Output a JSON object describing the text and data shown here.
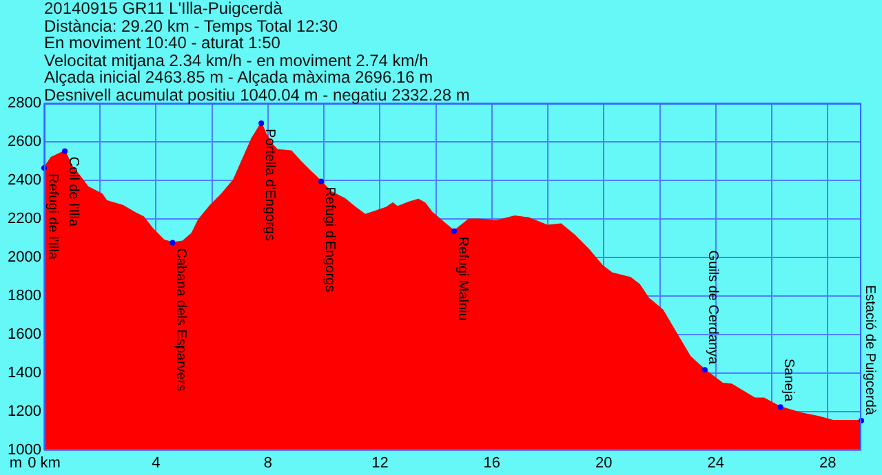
{
  "chart_data": {
    "type": "area",
    "title": "20140915 GR11 L'Illa-Puigcerdà",
    "subtitle": "Distància: 29.20 km - Temps Total 12:30\nEn moviment 10:40 - aturat 1:50\nVelocitat mitjana 2.34 km/h - en moviment 2.74 km/h\nAlçada inicial 2463.85 m - Alçada màxima 2696.16 m\nDesnivell acumulat positiu 1040.04 m - negatiu 2332.28 m",
    "ylabel": "m",
    "x": [
      0,
      0.25,
      0.74,
      0.99,
      1.32,
      1.57,
      2.06,
      2.23,
      2.8,
      3.22,
      3.55,
      3.88,
      4.29,
      4.59,
      4.95,
      5.28,
      5.53,
      5.94,
      6.35,
      6.77,
      7.1,
      7.43,
      7.76,
      7.92,
      8.17,
      8.33,
      8.83,
      9.16,
      9.49,
      9.9,
      10.23,
      10.73,
      11.14,
      11.47,
      11.72,
      12.21,
      12.46,
      12.62,
      13.04,
      13.37,
      13.61,
      13.86,
      14.35,
      14.65,
      15.18,
      15.51,
      16.16,
      16.82,
      17.32,
      17.98,
      18.47,
      18.97,
      19.46,
      19.95,
      20.28,
      20.94,
      21.27,
      21.6,
      22.1,
      22.59,
      23.08,
      23.61,
      24.24,
      24.57,
      25.39,
      25.72,
      26.31,
      27.04,
      27.7,
      28.19,
      29.2
    ],
    "series": [
      {
        "color": "#ff0000",
        "values": [
          2464,
          2518,
          2552,
          2475,
          2414,
          2366,
          2330,
          2294,
          2270,
          2234,
          2210,
          2149,
          2089,
          2077,
          2084,
          2125,
          2198,
          2270,
          2330,
          2402,
          2511,
          2619,
          2696,
          2643,
          2583,
          2559,
          2552,
          2499,
          2451,
          2395,
          2342,
          2306,
          2258,
          2222,
          2234,
          2258,
          2282,
          2263,
          2287,
          2301,
          2282,
          2234,
          2173,
          2137,
          2198,
          2198,
          2190,
          2214,
          2205,
          2166,
          2173,
          2113,
          2041,
          1957,
          1920,
          1896,
          1860,
          1788,
          1728,
          1607,
          1487,
          1417,
          1347,
          1342,
          1270,
          1270,
          1224,
          1193,
          1173,
          1154,
          1154
        ]
      }
    ],
    "xlim": [
      0,
      29.2
    ],
    "xticks": [
      {
        "value": 0,
        "label": "0 km"
      },
      {
        "value": 2,
        "label": null
      },
      4,
      {
        "value": 6,
        "label": null
      },
      8,
      {
        "value": 10,
        "label": null
      },
      12,
      {
        "value": 14,
        "label": null
      },
      16,
      {
        "value": 18,
        "label": null
      },
      20,
      {
        "value": 22,
        "label": null
      },
      24,
      {
        "value": 26,
        "label": null
      },
      28
    ],
    "ylim": [
      1000,
      2800
    ],
    "yticks": [
      1000,
      1200,
      1400,
      1600,
      1800,
      2000,
      2200,
      2400,
      2600,
      2800
    ],
    "grid": true,
    "legend": false,
    "marker": "none",
    "annotations": [
      {
        "text": "Refugi de l'Illa",
        "x": 0,
        "y": 2464
      },
      {
        "text": "Coll de l'Illa",
        "x": 0.74,
        "y": 2552
      },
      {
        "text": "Cabana dels Esparvers",
        "x": 4.59,
        "y": 2077
      },
      {
        "text": "Portella d'Engorgs",
        "x": 7.76,
        "y": 2696
      },
      {
        "text": "Refugi d'Engorgs",
        "x": 9.9,
        "y": 2395
      },
      {
        "text": "Refugi Malniu",
        "x": 14.65,
        "y": 2137
      },
      {
        "text": "Guils de Cerdanya",
        "x": 23.61,
        "y": 1417
      },
      {
        "text": "Saneja",
        "x": 26.31,
        "y": 1224
      },
      {
        "text": "Estació de Puigcerdà",
        "x": 29.2,
        "y": 1154
      }
    ]
  }
}
